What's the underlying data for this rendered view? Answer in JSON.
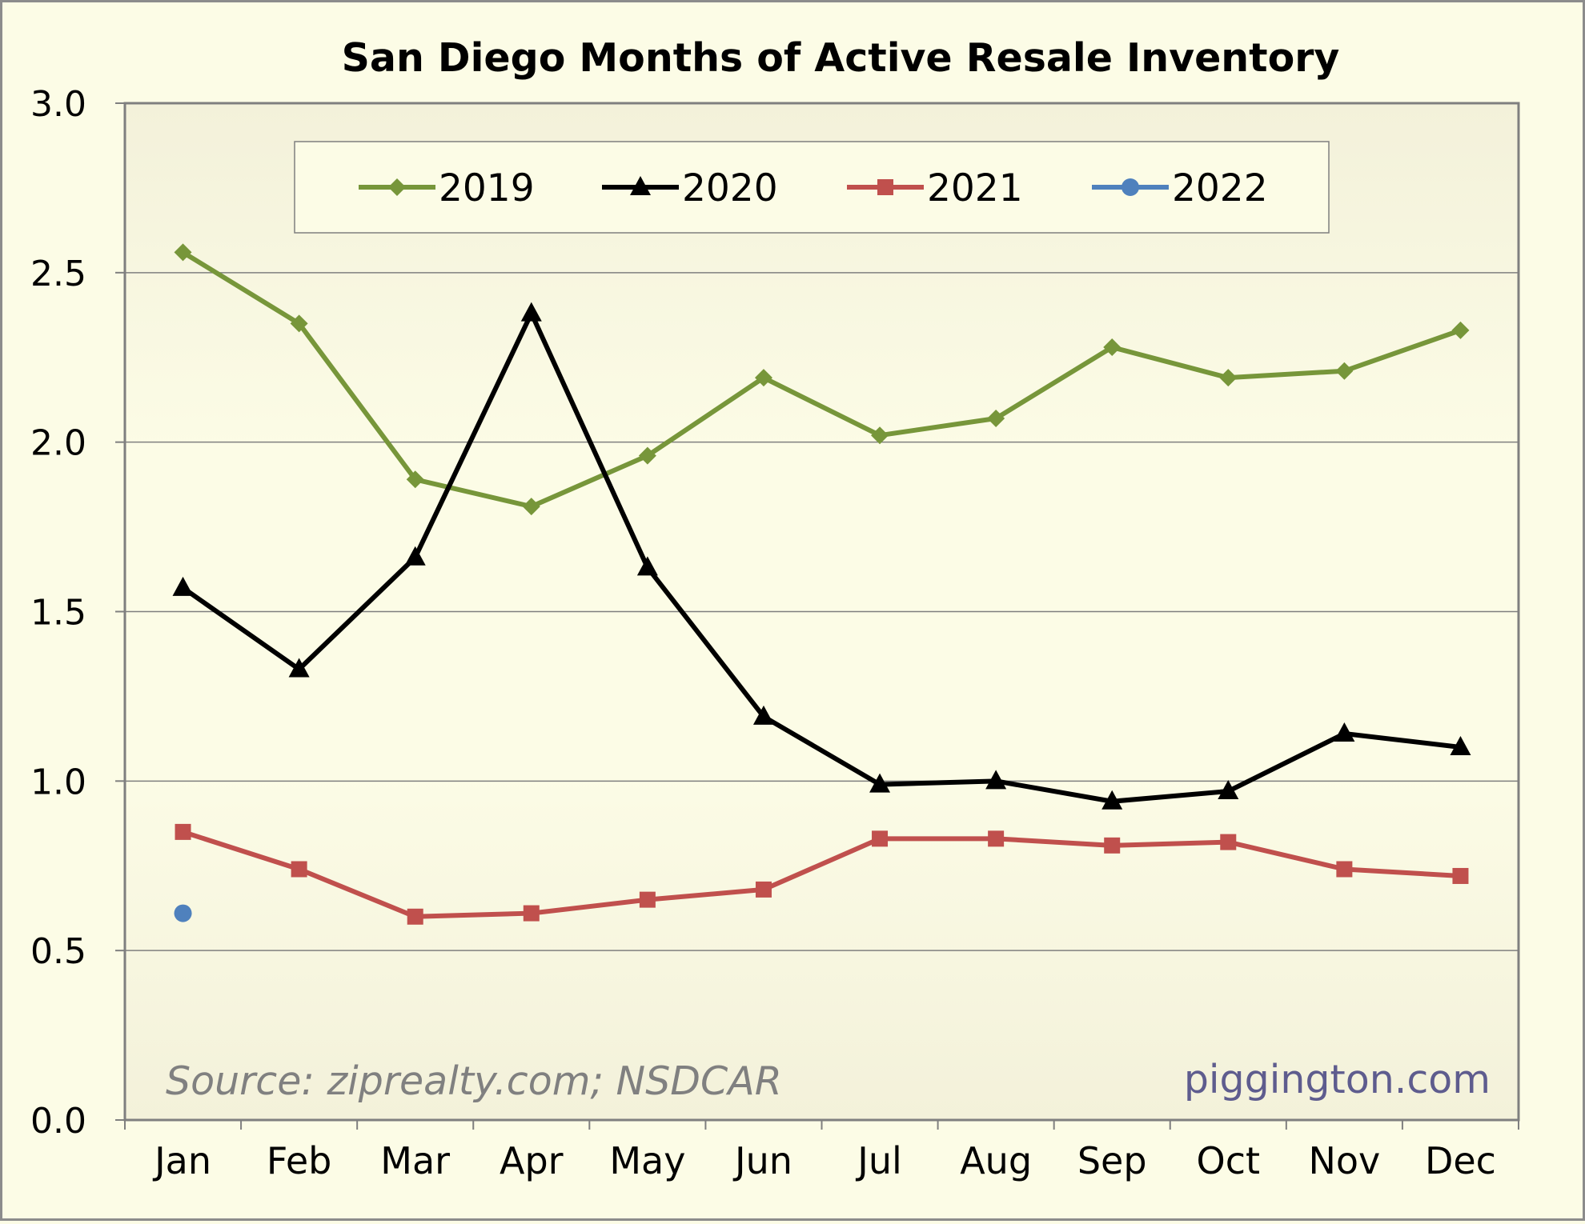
{
  "chart_data": {
    "type": "line",
    "title": "San Diego Months of Active Resale Inventory",
    "categories": [
      "Jan",
      "Feb",
      "Mar",
      "Apr",
      "May",
      "Jun",
      "Jul",
      "Aug",
      "Sep",
      "Oct",
      "Nov",
      "Dec"
    ],
    "ylim": [
      0,
      3
    ],
    "yticks": [
      "0.0",
      "0.5",
      "1.0",
      "1.5",
      "2.0",
      "2.5",
      "3.0"
    ],
    "grid": true,
    "legend_position": "top-center",
    "series": [
      {
        "name": "2019",
        "color": "#77963a",
        "marker": "diamond",
        "values": [
          2.56,
          2.35,
          1.89,
          1.81,
          1.96,
          2.19,
          2.02,
          2.07,
          2.28,
          2.19,
          2.21,
          2.33
        ]
      },
      {
        "name": "2020",
        "color": "#000000",
        "marker": "triangle",
        "values": [
          1.57,
          1.33,
          1.66,
          2.38,
          1.63,
          1.19,
          0.99,
          1.0,
          0.94,
          0.97,
          1.14,
          1.1
        ]
      },
      {
        "name": "2021",
        "color": "#c0504d",
        "marker": "square",
        "values": [
          0.85,
          0.74,
          0.6,
          0.61,
          0.65,
          0.68,
          0.83,
          0.83,
          0.81,
          0.82,
          0.74,
          0.72
        ]
      },
      {
        "name": "2022",
        "color": "#4f81bd",
        "marker": "circle",
        "values": [
          0.61,
          null,
          null,
          null,
          null,
          null,
          null,
          null,
          null,
          null,
          null,
          null
        ]
      }
    ],
    "annotations": {
      "source": "Source: ziprealty.com; NSDCAR",
      "site": "piggington.com"
    }
  }
}
